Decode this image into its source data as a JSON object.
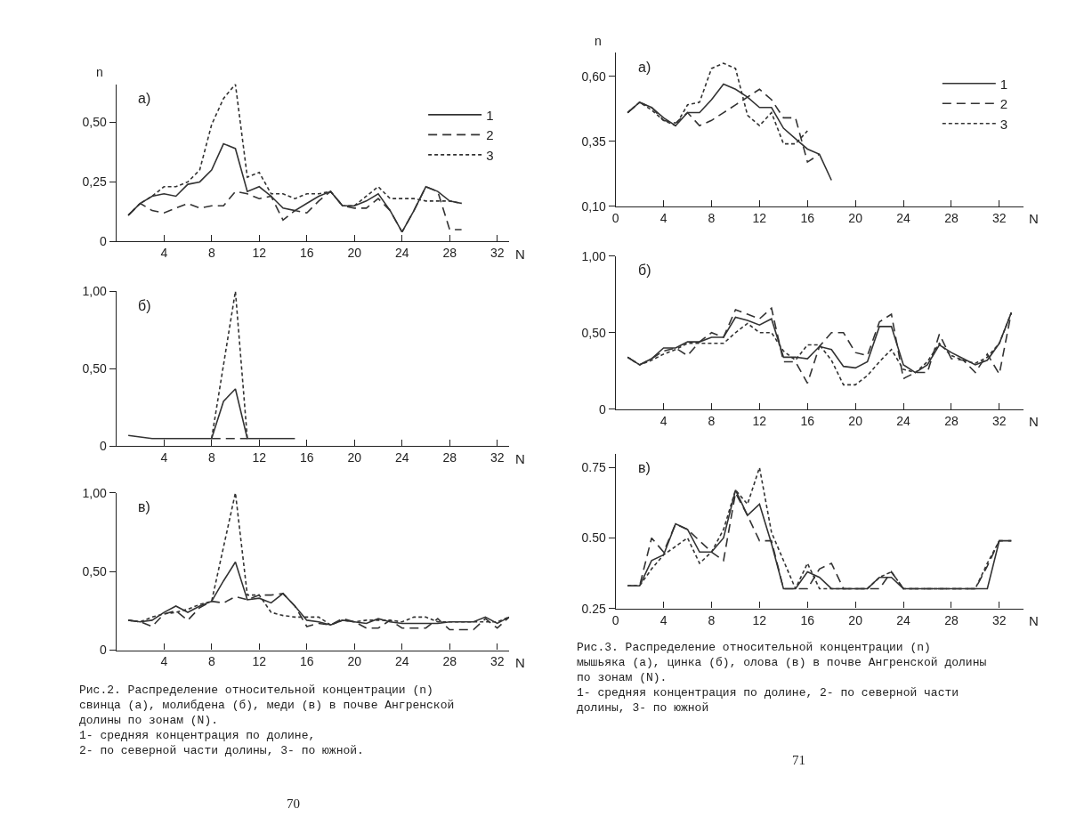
{
  "chart_data": [
    {
      "type": "line",
      "title": "а)",
      "xlabel": "N",
      "ylabel": "n",
      "xlim": [
        0,
        33
      ],
      "xticks": [
        4,
        8,
        12,
        16,
        20,
        24,
        28,
        32
      ],
      "ylim": [
        0,
        0.66
      ],
      "yticks": [
        0,
        {
          "value": 0.25,
          "label": "0,25"
        },
        {
          "value": 0.5,
          "label": "0,50"
        }
      ],
      "grid": false,
      "legend": "top right",
      "marker": "none",
      "series": [
        {
          "name": "1",
          "color": "#333333",
          "line_style": "solid",
          "x": [
            1,
            2,
            3,
            4,
            5,
            6,
            7,
            8,
            9,
            10,
            11,
            12,
            13,
            14,
            15,
            16,
            17,
            18,
            19,
            20,
            21,
            22,
            23,
            24,
            25,
            26,
            27,
            28,
            29
          ],
          "values": [
            0.11,
            0.16,
            0.19,
            0.2,
            0.19,
            0.24,
            0.25,
            0.3,
            0.41,
            0.39,
            0.21,
            0.23,
            0.19,
            0.14,
            0.13,
            0.16,
            0.19,
            0.21,
            0.15,
            0.15,
            0.17,
            0.2,
            0.13,
            0.04,
            0.13,
            0.23,
            0.21,
            0.17,
            0.16
          ]
        },
        {
          "name": "2",
          "color": "#333333",
          "line_style": "dashed",
          "x": [
            1,
            2,
            3,
            4,
            5,
            6,
            7,
            8,
            9,
            10,
            11,
            12,
            13,
            14,
            15,
            16,
            17,
            18,
            19,
            20,
            21,
            22,
            23,
            24,
            25,
            26,
            27,
            28,
            29
          ],
          "values": [
            0.11,
            0.16,
            0.13,
            0.12,
            0.14,
            0.16,
            0.14,
            0.15,
            0.15,
            0.21,
            0.2,
            0.18,
            0.19,
            0.09,
            0.13,
            0.12,
            0.17,
            0.21,
            0.15,
            0.14,
            0.14,
            0.18,
            0.13,
            0.04,
            0.13,
            0.23,
            0.21,
            0.05,
            0.05
          ]
        },
        {
          "name": "3",
          "color": "#333333",
          "line_style": "dotted",
          "x": [
            1,
            2,
            3,
            4,
            5,
            6,
            7,
            8,
            9,
            10,
            11,
            12,
            13,
            14,
            15,
            16,
            17,
            18,
            19,
            20,
            21,
            22,
            23,
            24,
            25,
            26,
            27,
            28,
            29
          ],
          "values": [
            0.11,
            0.16,
            0.19,
            0.23,
            0.23,
            0.25,
            0.3,
            0.49,
            0.6,
            0.66,
            0.27,
            0.29,
            0.2,
            0.2,
            0.18,
            0.2,
            0.2,
            0.21,
            0.15,
            0.15,
            0.19,
            0.23,
            0.18,
            0.18,
            0.18,
            0.17,
            0.17,
            0.17,
            0.16
          ]
        }
      ]
    },
    {
      "type": "line",
      "title": "б)",
      "xlabel": "N",
      "xlim": [
        0,
        33
      ],
      "xticks": [
        4,
        8,
        12,
        16,
        20,
        24,
        28,
        32
      ],
      "ylim": [
        0,
        1.0
      ],
      "yticks": [
        0,
        {
          "value": 0.5,
          "label": "0,50"
        },
        {
          "value": 1.0,
          "label": "1,00"
        }
      ],
      "grid": false,
      "marker": "none",
      "series": [
        {
          "color": "#333333",
          "line_style": "solid",
          "x": [
            1,
            2,
            3,
            4,
            5,
            6,
            7,
            8,
            9,
            10,
            11,
            12,
            13,
            14,
            15
          ],
          "values": [
            0.07,
            0.06,
            0.05,
            0.05,
            0.05,
            0.05,
            0.05,
            0.05,
            0.29,
            0.37,
            0.05,
            0.05,
            0.05,
            0.05,
            0.05
          ]
        },
        {
          "color": "#333333",
          "line_style": "dashed",
          "x": [
            8,
            9,
            10,
            11
          ],
          "values": [
            0.05,
            0.05,
            0.05,
            0.05
          ]
        },
        {
          "color": "#333333",
          "line_style": "dotted",
          "x": [
            8,
            10,
            11
          ],
          "values": [
            0.05,
            1.0,
            0.05
          ]
        }
      ]
    },
    {
      "type": "line",
      "title": "в)",
      "xlabel": "N",
      "xlim": [
        0,
        33
      ],
      "xticks": [
        4,
        8,
        12,
        16,
        20,
        24,
        28,
        32
      ],
      "ylim": [
        0,
        1.0
      ],
      "yticks": [
        0,
        {
          "value": 0.5,
          "label": "0,50"
        },
        {
          "value": 1.0,
          "label": "1,00"
        }
      ],
      "grid": false,
      "marker": "none",
      "annotations": [
        "Рис.2. Распределение относительной концентрации (n)\nсвинца (а), молибдена (б), меди (в) в почве Ангренской\nдолины по зонам (N).\n1- средняя концентрация по долине,\n2- по северной части долины, 3- по южной.",
        "70"
      ],
      "series": [
        {
          "color": "#333333",
          "line_style": "solid",
          "x": [
            1,
            2,
            3,
            4,
            5,
            6,
            7,
            8,
            9,
            10,
            11,
            12,
            13,
            14,
            15,
            16,
            17,
            18,
            19,
            20,
            21,
            22,
            23,
            24,
            25,
            26,
            27,
            28,
            29,
            30,
            31,
            32,
            33
          ],
          "values": [
            0.19,
            0.18,
            0.19,
            0.24,
            0.28,
            0.24,
            0.28,
            0.31,
            0.44,
            0.56,
            0.32,
            0.33,
            0.3,
            0.36,
            0.28,
            0.19,
            0.18,
            0.16,
            0.19,
            0.18,
            0.17,
            0.2,
            0.18,
            0.17,
            0.17,
            0.17,
            0.17,
            0.18,
            0.18,
            0.18,
            0.21,
            0.17,
            0.21
          ]
        },
        {
          "color": "#333333",
          "line_style": "dashed",
          "x": [
            1,
            2,
            3,
            4,
            5,
            6,
            7,
            8,
            9,
            10,
            11,
            12,
            13,
            14,
            15,
            16,
            17,
            18,
            19,
            20,
            21,
            22,
            23,
            24,
            25,
            26,
            27,
            28,
            29,
            30,
            31,
            32,
            33
          ],
          "values": [
            0.19,
            0.18,
            0.15,
            0.23,
            0.25,
            0.19,
            0.27,
            0.31,
            0.3,
            0.34,
            0.32,
            0.35,
            0.35,
            0.36,
            0.28,
            0.15,
            0.17,
            0.16,
            0.2,
            0.18,
            0.14,
            0.14,
            0.19,
            0.14,
            0.14,
            0.14,
            0.2,
            0.13,
            0.13,
            0.13,
            0.2,
            0.14,
            0.21
          ]
        },
        {
          "color": "#333333",
          "line_style": "dotted",
          "x": [
            1,
            2,
            3,
            4,
            5,
            6,
            7,
            8,
            10,
            11,
            12,
            13,
            14,
            15,
            16,
            17,
            18,
            19,
            20,
            21,
            22,
            23,
            24,
            25,
            26,
            27,
            28,
            29,
            30,
            31,
            32,
            33
          ],
          "values": [
            0.19,
            0.18,
            0.21,
            0.23,
            0.24,
            0.26,
            0.29,
            0.31,
            1.0,
            0.35,
            0.35,
            0.24,
            0.22,
            0.21,
            0.21,
            0.21,
            0.16,
            0.19,
            0.18,
            0.19,
            0.19,
            0.19,
            0.18,
            0.21,
            0.21,
            0.18,
            0.18,
            0.18,
            0.18,
            0.18,
            0.18,
            0.21
          ]
        }
      ]
    },
    {
      "type": "line",
      "title": "а)",
      "xlabel": "N",
      "ylabel": "n",
      "xlim": [
        0,
        34
      ],
      "xticks": [
        0,
        4,
        8,
        12,
        16,
        20,
        24,
        28,
        32
      ],
      "ylim": [
        0.1,
        0.69
      ],
      "yticks": [
        {
          "value": 0.1,
          "label": "0,10"
        },
        {
          "value": 0.35,
          "label": "0,35"
        },
        {
          "value": 0.6,
          "label": "0,60"
        }
      ],
      "grid": false,
      "legend": "top right",
      "marker": "none",
      "series": [
        {
          "name": "1",
          "color": "#333333",
          "line_style": "solid",
          "x": [
            1,
            2,
            3,
            4,
            5,
            6,
            7,
            8,
            9,
            10,
            11,
            12,
            13,
            14,
            15,
            16,
            17,
            18
          ],
          "values": [
            0.46,
            0.5,
            0.48,
            0.44,
            0.41,
            0.46,
            0.46,
            0.51,
            0.57,
            0.55,
            0.52,
            0.48,
            0.48,
            0.4,
            0.36,
            0.32,
            0.3,
            0.2
          ]
        },
        {
          "name": "2",
          "color": "#333333",
          "line_style": "dashed",
          "x": [
            1,
            2,
            3,
            4,
            5,
            6,
            7,
            8,
            9,
            10,
            11,
            12,
            13,
            14,
            15,
            16,
            17
          ],
          "values": [
            0.46,
            0.5,
            0.48,
            0.43,
            0.42,
            0.46,
            0.41,
            0.43,
            0.46,
            0.49,
            0.52,
            0.55,
            0.51,
            0.44,
            0.44,
            0.27,
            0.3
          ]
        },
        {
          "name": "3",
          "color": "#333333",
          "line_style": "dotted",
          "x": [
            1,
            2,
            3,
            4,
            5,
            6,
            7,
            8,
            9,
            10,
            11,
            12,
            13,
            14,
            15,
            16
          ],
          "values": [
            0.46,
            0.5,
            0.47,
            0.43,
            0.41,
            0.49,
            0.5,
            0.63,
            0.65,
            0.63,
            0.45,
            0.41,
            0.46,
            0.34,
            0.34,
            0.39
          ]
        }
      ]
    },
    {
      "type": "line",
      "title": "б)",
      "xlabel": "N",
      "xlim": [
        0,
        34
      ],
      "xticks": [
        4,
        8,
        12,
        16,
        20,
        24,
        28,
        32
      ],
      "ylim": [
        0,
        1.0
      ],
      "yticks": [
        0,
        {
          "value": 0.5,
          "label": "0,50"
        },
        {
          "value": 1.0,
          "label": "1,00"
        }
      ],
      "grid": false,
      "marker": "none",
      "series": [
        {
          "color": "#333333",
          "line_style": "solid",
          "x": [
            1,
            2,
            3,
            4,
            5,
            6,
            7,
            8,
            9,
            10,
            11,
            12,
            13,
            14,
            15,
            16,
            17,
            18,
            19,
            20,
            21,
            22,
            23,
            24,
            25,
            26,
            27,
            28,
            29,
            30,
            31,
            32,
            33
          ],
          "values": [
            0.34,
            0.29,
            0.33,
            0.4,
            0.4,
            0.44,
            0.44,
            0.47,
            0.47,
            0.6,
            0.58,
            0.55,
            0.59,
            0.34,
            0.34,
            0.33,
            0.41,
            0.39,
            0.28,
            0.27,
            0.31,
            0.54,
            0.54,
            0.29,
            0.24,
            0.29,
            0.42,
            0.37,
            0.33,
            0.29,
            0.32,
            0.43,
            0.63
          ]
        },
        {
          "color": "#333333",
          "line_style": "dashed",
          "x": [
            1,
            2,
            3,
            4,
            5,
            6,
            7,
            8,
            9,
            10,
            11,
            12,
            13,
            14,
            15,
            16,
            17,
            18,
            19,
            20,
            21,
            22,
            23,
            24,
            25,
            26,
            27,
            28,
            29,
            30,
            31,
            32,
            33
          ],
          "values": [
            0.34,
            0.29,
            0.33,
            0.38,
            0.4,
            0.35,
            0.44,
            0.5,
            0.47,
            0.65,
            0.62,
            0.59,
            0.66,
            0.31,
            0.31,
            0.17,
            0.41,
            0.5,
            0.5,
            0.37,
            0.35,
            0.57,
            0.62,
            0.2,
            0.24,
            0.24,
            0.49,
            0.33,
            0.32,
            0.24,
            0.36,
            0.23,
            0.63
          ]
        },
        {
          "color": "#333333",
          "line_style": "dotted",
          "x": [
            1,
            2,
            3,
            4,
            5,
            6,
            7,
            8,
            9,
            10,
            11,
            12,
            13,
            14,
            15,
            16,
            17,
            18,
            19,
            20,
            21,
            22,
            23,
            24,
            25,
            26,
            27,
            28,
            29,
            30,
            31,
            32,
            33
          ],
          "values": [
            0.34,
            0.29,
            0.32,
            0.36,
            0.39,
            0.43,
            0.43,
            0.43,
            0.43,
            0.5,
            0.56,
            0.5,
            0.5,
            0.38,
            0.32,
            0.42,
            0.42,
            0.32,
            0.16,
            0.16,
            0.22,
            0.31,
            0.39,
            0.26,
            0.24,
            0.31,
            0.43,
            0.35,
            0.32,
            0.3,
            0.34,
            0.43,
            0.63
          ]
        }
      ]
    },
    {
      "type": "line",
      "title": "в)",
      "xlabel": "N",
      "xlim": [
        0,
        34
      ],
      "xticks": [
        0,
        4,
        8,
        12,
        16,
        20,
        24,
        28,
        32
      ],
      "ylim": [
        0.25,
        0.8
      ],
      "yticks": [
        {
          "value": 0.25,
          "label": "0.25"
        },
        {
          "value": 0.5,
          "label": "0.50"
        },
        {
          "value": 0.75,
          "label": "0.75"
        }
      ],
      "grid": false,
      "marker": "none",
      "annotations": [
        "Рис.3. Распределение относительной концентрации (n)\nмышьяка (а), цинка (б), олова (в) в почве Ангренской долины\nпо зонам (N).\n1- средняя концентрация по долине, 2- по северной части\nдолины, 3- по южной",
        "71"
      ],
      "series": [
        {
          "color": "#333333",
          "line_style": "solid",
          "x": [
            1,
            2,
            3,
            4,
            5,
            6,
            7,
            8,
            9,
            10,
            11,
            12,
            13,
            14,
            15,
            16,
            17,
            18,
            19,
            20,
            21,
            22,
            23,
            24,
            25,
            26,
            27,
            28,
            29,
            30,
            31,
            32,
            33
          ],
          "values": [
            0.33,
            0.33,
            0.42,
            0.44,
            0.55,
            0.53,
            0.45,
            0.45,
            0.5,
            0.67,
            0.58,
            0.62,
            0.48,
            0.32,
            0.32,
            0.38,
            0.36,
            0.32,
            0.32,
            0.32,
            0.32,
            0.36,
            0.36,
            0.32,
            0.32,
            0.32,
            0.32,
            0.32,
            0.32,
            0.32,
            0.32,
            0.49,
            0.49
          ]
        },
        {
          "color": "#333333",
          "line_style": "dashed",
          "x": [
            1,
            2,
            3,
            4,
            5,
            6,
            7,
            8,
            9,
            10,
            11,
            12,
            13,
            14,
            15,
            16,
            17,
            18,
            19,
            20,
            21,
            22,
            23,
            24,
            25,
            26,
            27,
            28,
            29,
            30,
            31,
            32,
            33
          ],
          "values": [
            0.33,
            0.33,
            0.5,
            0.45,
            0.55,
            0.53,
            0.49,
            0.45,
            0.42,
            0.66,
            0.58,
            0.49,
            0.49,
            0.32,
            0.32,
            0.32,
            0.39,
            0.41,
            0.32,
            0.32,
            0.32,
            0.32,
            0.38,
            0.32,
            0.32,
            0.32,
            0.32,
            0.32,
            0.32,
            0.32,
            0.4,
            0.49,
            0.49
          ]
        },
        {
          "color": "#333333",
          "line_style": "dotted",
          "x": [
            1,
            2,
            3,
            4,
            5,
            6,
            7,
            8,
            9,
            10,
            11,
            12,
            13,
            14,
            15,
            16,
            17,
            18,
            19,
            20,
            21,
            22,
            23,
            24,
            25,
            26,
            27,
            28,
            29,
            30,
            31,
            32
          ],
          "values": [
            0.33,
            0.33,
            0.39,
            0.44,
            0.47,
            0.5,
            0.41,
            0.45,
            0.53,
            0.67,
            0.62,
            0.75,
            0.52,
            0.42,
            0.32,
            0.41,
            0.32,
            0.32,
            0.32,
            0.32,
            0.32,
            0.36,
            0.38,
            0.32,
            0.32,
            0.32,
            0.32,
            0.32,
            0.32,
            0.32,
            0.41,
            0.49
          ]
        }
      ]
    }
  ]
}
